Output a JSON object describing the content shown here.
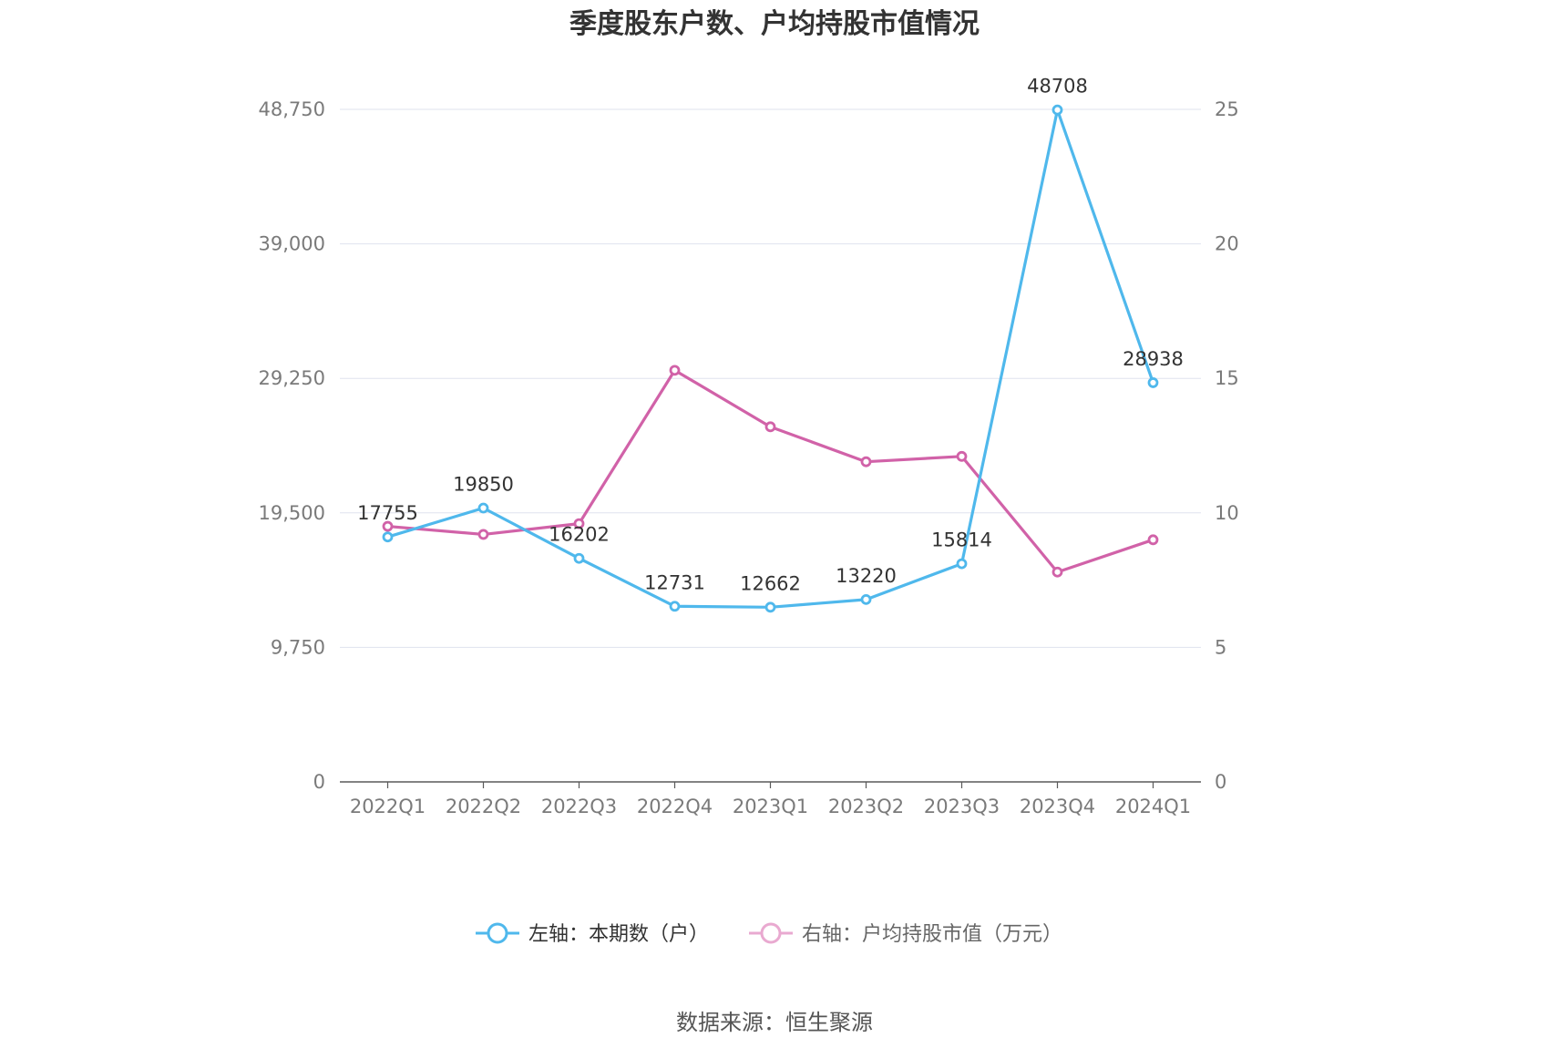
{
  "chart_data": {
    "type": "line",
    "title": "季度股东户数、户均持股市值情况",
    "categories": [
      "2022Q1",
      "2022Q2",
      "2022Q3",
      "2022Q4",
      "2023Q1",
      "2023Q2",
      "2023Q3",
      "2023Q4",
      "2024Q1"
    ],
    "left_axis": {
      "ticks": [
        "0",
        "9,750",
        "19,500",
        "29,250",
        "39,000",
        "48,750"
      ],
      "ylim": [
        0,
        48750
      ]
    },
    "right_axis": {
      "ticks": [
        "0",
        "5",
        "10",
        "15",
        "20",
        "25"
      ],
      "ylim": [
        0,
        25
      ]
    },
    "grid": true,
    "legend_position": "bottom",
    "series": [
      {
        "name": "左轴：本期数（户）",
        "axis": "left",
        "color": "#4fb8ec",
        "values": [
          17755,
          19850,
          16202,
          12731,
          12662,
          13220,
          15814,
          48708,
          28938
        ],
        "labels": [
          "17755",
          "19850",
          "16202",
          "12731",
          "12662",
          "13220",
          "15814",
          "48708",
          "28938"
        ]
      },
      {
        "name": "右轴：户均持股市值（万元）",
        "axis": "right",
        "color": "#d162a8",
        "legend_color": "#e9a9d0",
        "values": [
          9.5,
          9.2,
          9.6,
          15.3,
          13.2,
          11.9,
          12.1,
          7.8,
          9.0
        ]
      }
    ],
    "source": "数据来源：恒生聚源"
  }
}
